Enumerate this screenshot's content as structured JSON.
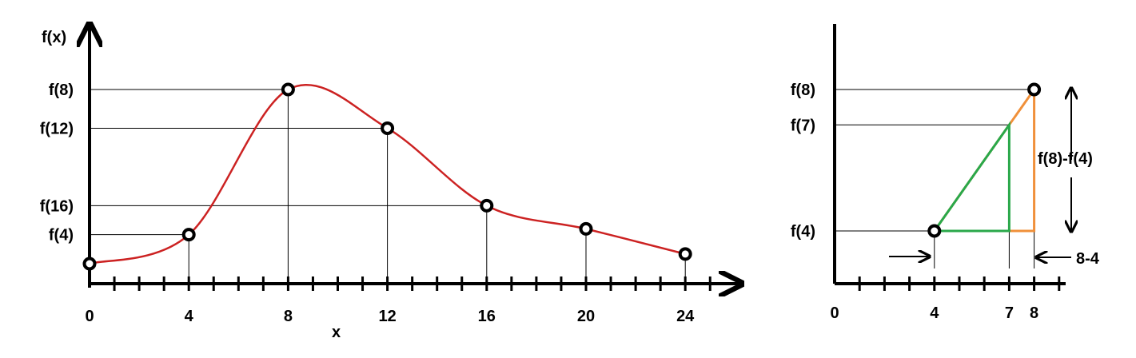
{
  "chart_data": [
    {
      "type": "line",
      "ylabel": "f(x)",
      "xlabel": "x",
      "x_tick_labels": [
        "0",
        "4",
        "8",
        "12",
        "16",
        "20",
        "24"
      ],
      "y_tick_labels": [
        "f(8)",
        "f(12)",
        "f(16)",
        "f(4)"
      ],
      "x_minor_ticks": [
        0,
        1,
        2,
        3,
        4,
        5,
        6,
        7,
        8,
        9,
        10,
        11,
        12,
        13,
        14,
        15,
        16,
        17,
        18,
        19,
        20,
        21,
        22,
        23,
        24,
        25
      ],
      "xlim": [
        0,
        26
      ],
      "series": [
        {
          "color": "#cc2222",
          "points": [
            {
              "x": 0,
              "y": 0.0
            },
            {
              "x": 4,
              "y": 0.15
            },
            {
              "x": 8,
              "y": 0.9
            },
            {
              "x": 12,
              "y": 0.7
            },
            {
              "x": 16,
              "y": 0.3
            },
            {
              "x": 20,
              "y": 0.18
            },
            {
              "x": 24,
              "y": 0.05
            }
          ]
        }
      ],
      "reference_lines": [
        {
          "label": "f(8)",
          "x": 8,
          "y": 0.9
        },
        {
          "label": "f(12)",
          "x": 12,
          "y": 0.7
        },
        {
          "label": "f(16)",
          "x": 16,
          "y": 0.3
        },
        {
          "label": "f(4)",
          "x": 4,
          "y": 0.15
        }
      ],
      "drop_lines_x": [
        4,
        8,
        12,
        16,
        20,
        24
      ]
    },
    {
      "type": "line",
      "x_tick_labels": [
        "0",
        "4",
        "7",
        "8"
      ],
      "y_tick_labels": [
        "f(8)",
        "f(7)",
        "f(4)"
      ],
      "xlim": [
        0,
        9
      ],
      "points": [
        {
          "x": 4,
          "y": 4.0
        },
        {
          "x": 8,
          "y": 8.0
        }
      ],
      "triangles": [
        {
          "color": "#f0903a",
          "vertices": [
            [
              4,
              4
            ],
            [
              8,
              8
            ],
            [
              8,
              4
            ]
          ]
        },
        {
          "color": "#2aa84a",
          "vertices": [
            [
              4,
              4
            ],
            [
              7,
              7
            ],
            [
              7,
              4
            ]
          ]
        }
      ],
      "annotations": [
        "f(8)-f(4)",
        "8-4"
      ],
      "reference_y": {
        "f(8)": 8,
        "f(7)": 7,
        "f(4)": 4
      }
    }
  ]
}
